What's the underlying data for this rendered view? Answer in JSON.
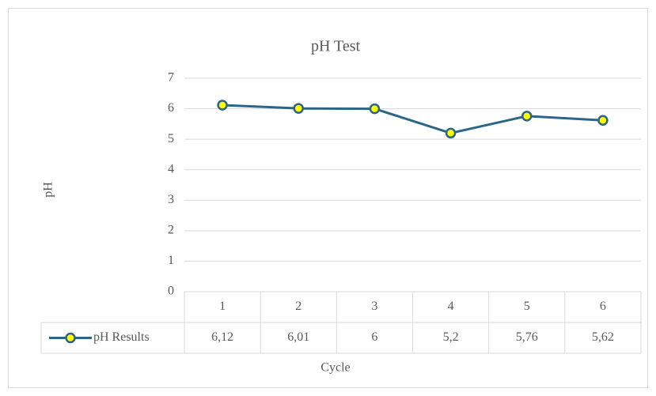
{
  "chart_data": {
    "type": "line",
    "title": "pH Test",
    "x_label": "Cycle",
    "y_label": "pH",
    "categories": [
      "1",
      "2",
      "3",
      "4",
      "5",
      "6"
    ],
    "series": [
      {
        "name": "pH Results",
        "color": "#2b6688",
        "marker_color": "#ffff00",
        "values": [
          6.12,
          6.01,
          6,
          5.2,
          5.76,
          5.62
        ],
        "value_labels": [
          "6,12",
          "6,01",
          "6",
          "5,2",
          "5,76",
          "5,62"
        ]
      }
    ],
    "ylim": [
      0,
      7
    ],
    "yticks": [
      0,
      1,
      2,
      3,
      4,
      5,
      6,
      7
    ],
    "grid": true,
    "data_table": true
  }
}
